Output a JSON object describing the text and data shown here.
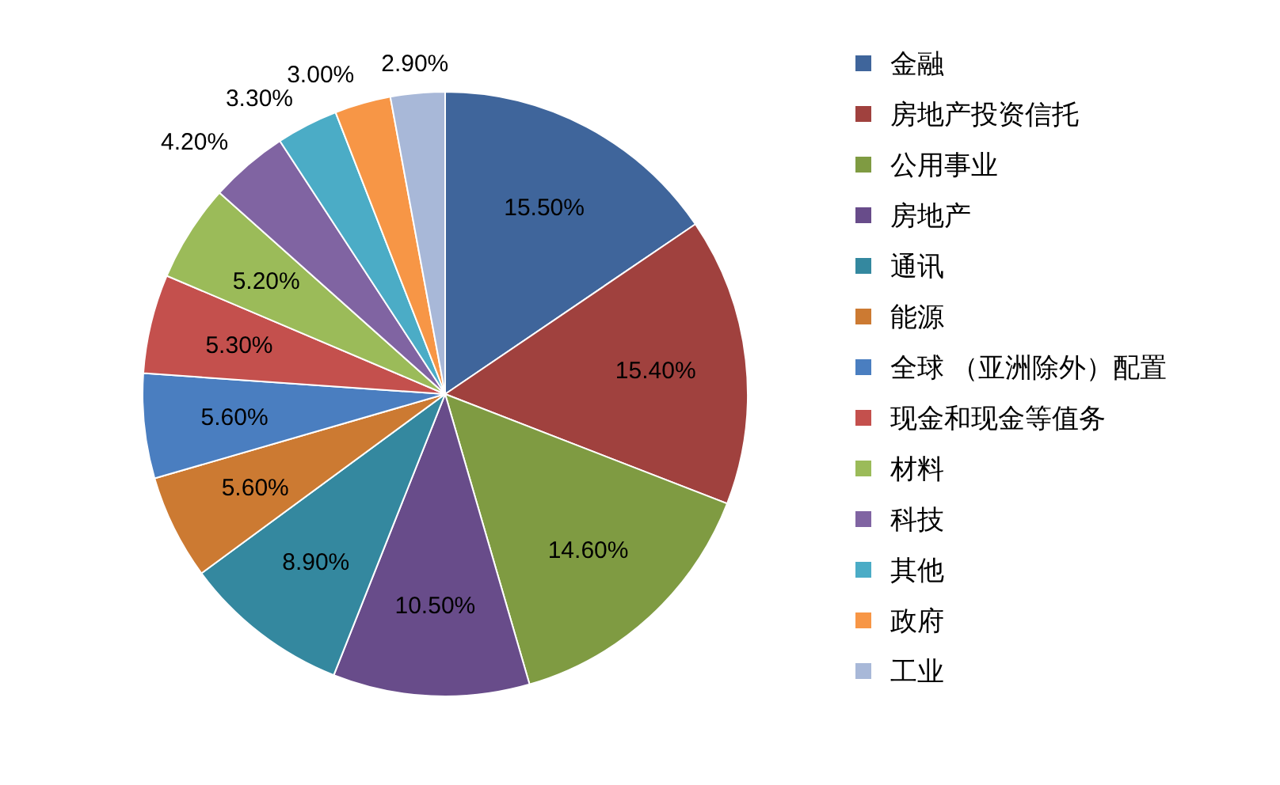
{
  "chart_data": {
    "type": "pie",
    "legend": "right",
    "categories": [
      "金融",
      "房地产投资信托",
      "公用事业",
      "房地产",
      "通讯",
      "能源",
      "全球 （亚洲除外）配置",
      "现金和现金等值务",
      "材料",
      "科技",
      "其他",
      "政府",
      "工业"
    ],
    "values": [
      15.5,
      15.4,
      14.6,
      10.5,
      8.9,
      5.6,
      5.6,
      5.3,
      5.2,
      4.2,
      3.3,
      3.0,
      2.9
    ],
    "value_labels": [
      "15.50%",
      "15.40%",
      "14.60%",
      "10.50%",
      "8.90%",
      "5.60%",
      "5.60%",
      "5.30%",
      "5.20%",
      "4.20%",
      "3.30%",
      "3.00%",
      "2.90%"
    ],
    "colors": [
      "#3f659b",
      "#a0413e",
      "#7f9b42",
      "#684c8a",
      "#34889f",
      "#cc7a32",
      "#4a7ec0",
      "#c4504d",
      "#9bbb59",
      "#8064a2",
      "#4bacc6",
      "#f79646",
      "#a8b8d8"
    ]
  }
}
